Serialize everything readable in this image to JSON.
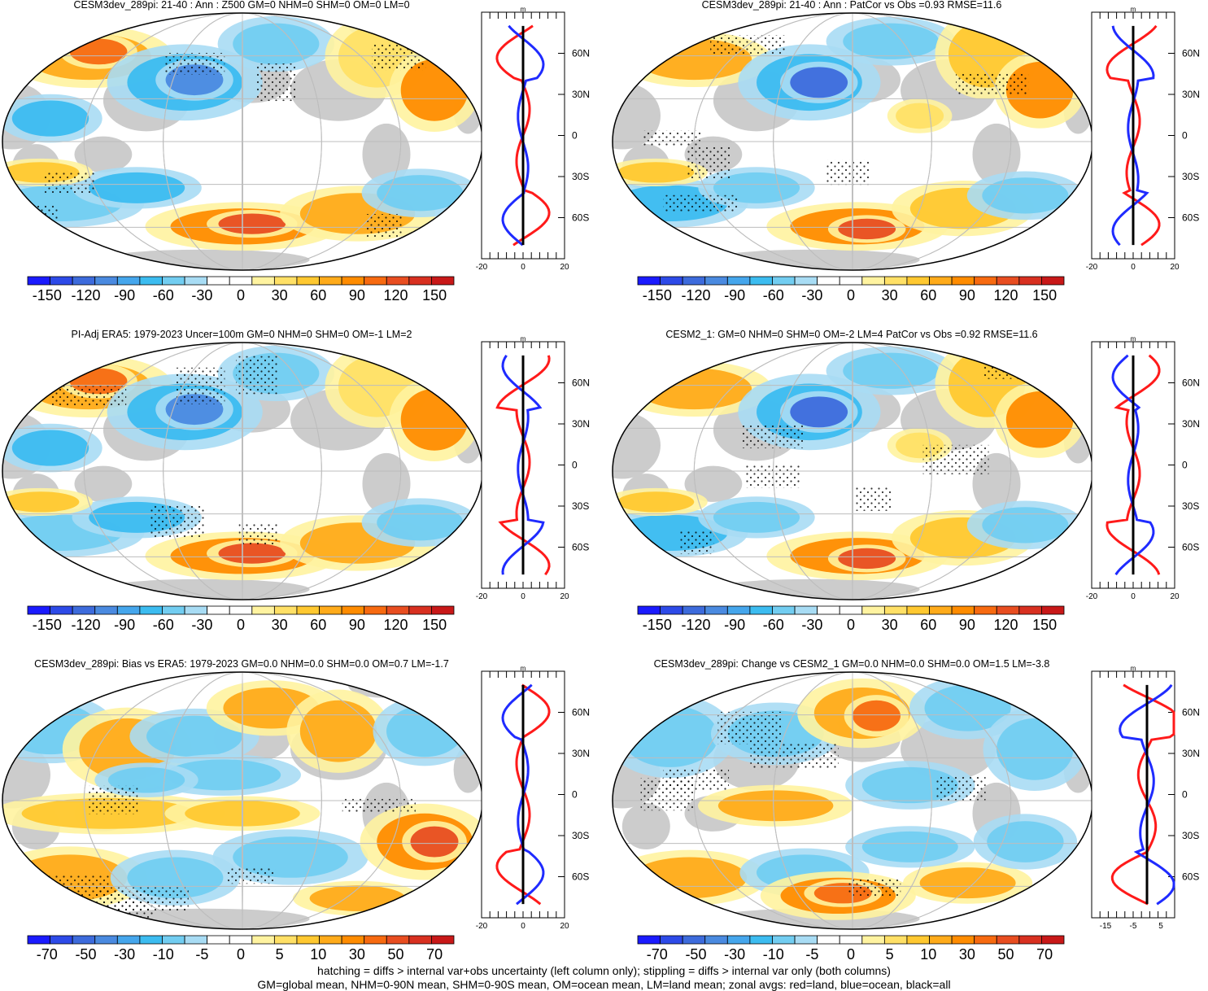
{
  "colors": {
    "land": "#cccccc",
    "ocean": "#ffffff",
    "outline": "#000000",
    "grid": "#bdbdbd",
    "red_line": "#ff1a1a",
    "blue_line": "#1f2bff",
    "black_line": "#000000",
    "field_scale": [
      "#1a1aff",
      "#2d4ae8",
      "#3d6bdc",
      "#4a8ae0",
      "#45a6ec",
      "#3cbcf0",
      "#72cdf1",
      "#a8dcf4",
      "#ffffff",
      "#ffffff",
      "#fff3a0",
      "#ffe066",
      "#ffc830",
      "#ffab1a",
      "#ff8c00",
      "#f76a10",
      "#e84d20",
      "#d83020",
      "#c81818"
    ]
  },
  "chart_data": [
    {
      "type": "heatmap",
      "title": "CESM3dev_289pi: 21-40 : Ann : Z500 GM=0 NHM=0 SHM=0 OM=0 LM=0",
      "colorbar_ticks": [
        "-150",
        "-120",
        "-90",
        "-60",
        "-30",
        "0",
        "30",
        "60",
        "90",
        "120",
        "150"
      ],
      "profile": {
        "units": "m",
        "xticks": [
          "-20",
          "0",
          "20"
        ],
        "xlim": [
          -20,
          20
        ],
        "ylabels": [
          "60N",
          "30N",
          "0",
          "30S",
          "60S"
        ],
        "ylim": [
          -90,
          90
        ]
      }
    },
    {
      "type": "heatmap",
      "title": "CESM3dev_289pi: 21-40 : Ann : PatCor vs Obs =0.93 RMSE=11.6",
      "colorbar_ticks": [
        "-150",
        "-120",
        "-90",
        "-60",
        "-30",
        "0",
        "30",
        "60",
        "90",
        "120",
        "150"
      ],
      "profile": {
        "units": "m",
        "xticks": [
          "-20",
          "0",
          "20"
        ],
        "xlim": [
          -20,
          20
        ],
        "ylabels": [
          "60N",
          "30N",
          "0",
          "30S",
          "60S"
        ],
        "ylim": [
          -90,
          90
        ]
      }
    },
    {
      "type": "heatmap",
      "title": "PI-Adj ERA5: 1979-2023 Uncer=100m GM=0 NHM=0 SHM=0 OM=-1 LM=2",
      "colorbar_ticks": [
        "-150",
        "-120",
        "-90",
        "-60",
        "-30",
        "0",
        "30",
        "60",
        "90",
        "120",
        "150"
      ],
      "profile": {
        "units": "m",
        "xticks": [
          "-20",
          "0",
          "20"
        ],
        "xlim": [
          -20,
          20
        ],
        "ylabels": [
          "60N",
          "30N",
          "0",
          "30S",
          "60S"
        ],
        "ylim": [
          -90,
          90
        ]
      }
    },
    {
      "type": "heatmap",
      "title": "CESM2_1: GM=0 NHM=0 SHM=0 OM=-2 LM=4 PatCor vs Obs =0.92 RMSE=11.6",
      "colorbar_ticks": [
        "-150",
        "-120",
        "-90",
        "-60",
        "-30",
        "0",
        "30",
        "60",
        "90",
        "120",
        "150"
      ],
      "profile": {
        "units": "m",
        "xticks": [
          "-20",
          "0",
          "20"
        ],
        "xlim": [
          -20,
          20
        ],
        "ylabels": [
          "60N",
          "30N",
          "0",
          "30S",
          "60S"
        ],
        "ylim": [
          -90,
          90
        ]
      }
    },
    {
      "type": "heatmap",
      "title": "CESM3dev_289pi: Bias vs ERA5: 1979-2023 GM=0.0 NHM=0.0 SHM=0.0 OM=0.7 LM=-1.7",
      "colorbar_ticks": [
        "-70",
        "-50",
        "-30",
        "-10",
        "-5",
        "0",
        "5",
        "10",
        "30",
        "50",
        "70"
      ],
      "profile": {
        "units": "m",
        "xticks": [
          "-20",
          "0",
          "20"
        ],
        "xlim": [
          -20,
          20
        ],
        "ylabels": [
          "60N",
          "30N",
          "0",
          "30S",
          "60S"
        ],
        "ylim": [
          -90,
          90
        ]
      }
    },
    {
      "type": "heatmap",
      "title": "CESM3dev_289pi: Change vs CESM2_1 GM=0.0 NHM=0.0 SHM=0.0 OM=1.5 LM=-3.8",
      "colorbar_ticks": [
        "-70",
        "-50",
        "-30",
        "-10",
        "-5",
        "0",
        "5",
        "10",
        "30",
        "50",
        "70"
      ],
      "profile": {
        "units": "m",
        "xticks": [
          "-15",
          "-5",
          "5"
        ],
        "xlim": [
          -20,
          10
        ],
        "ylabels": [
          "60N",
          "30N",
          "0",
          "30S",
          "60S"
        ],
        "ylim": [
          -90,
          90
        ]
      }
    }
  ],
  "footer": {
    "line1": "hatching = diffs > internal var+obs uncertainty (left column only); stippling = diffs > internal var only (both columns)",
    "line2": "GM=global mean, NHM=0-90N mean, SHM=0-90S mean, OM=ocean mean, LM=land mean; zonal avgs: red=land, blue=ocean, black=all"
  }
}
